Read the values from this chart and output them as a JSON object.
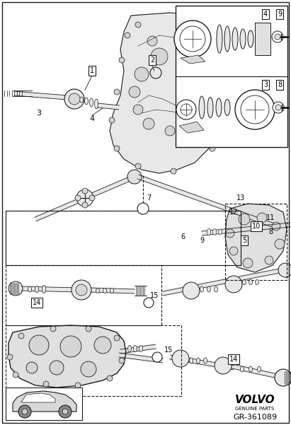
{
  "bg_color": "#ffffff",
  "volvo_text": "VOLVO",
  "genuine_parts": "GENUINE PARTS",
  "part_number": "GR-361089",
  "fig_width": 4.11,
  "fig_height": 6.01,
  "dpi": 100,
  "line_color": "#1a1a1a",
  "fill_light": "#e8e8e8",
  "fill_mid": "#cccccc",
  "fill_dark": "#aaaaaa"
}
